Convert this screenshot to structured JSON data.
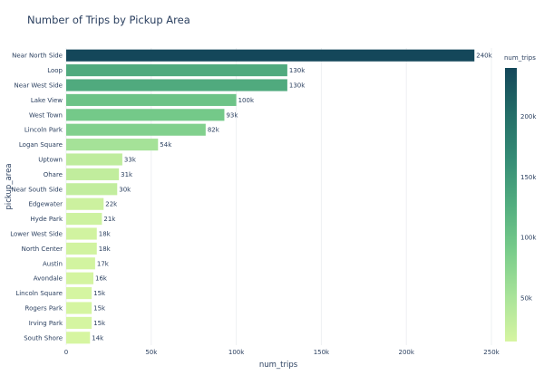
{
  "chart_data": {
    "type": "bar",
    "orientation": "horizontal",
    "title": "Number of Trips by Pickup Area",
    "xlabel": "num_trips",
    "ylabel": "pickup_area",
    "xlim": [
      0,
      250000
    ],
    "x_ticks": [
      0,
      50000,
      100000,
      150000,
      200000,
      250000
    ],
    "x_tick_labels": [
      "0",
      "50k",
      "100k",
      "150k",
      "200k",
      "250k"
    ],
    "grid": true,
    "categories": [
      "Near North Side",
      "Loop",
      "Near West Side",
      "Lake View",
      "West Town",
      "Lincoln Park",
      "Logan Square",
      "Uptown",
      "Ohare",
      "Near South Side",
      "Edgewater",
      "Hyde Park",
      "Lower West Side",
      "North Center",
      "Austin",
      "Avondale",
      "Lincoln Square",
      "Rogers Park",
      "Irving Park",
      "South Shore"
    ],
    "values": [
      240000,
      130000,
      130000,
      100000,
      93000,
      82000,
      54000,
      33000,
      31000,
      30000,
      22000,
      21000,
      18000,
      18000,
      17000,
      16000,
      15000,
      15000,
      15000,
      14000
    ],
    "data_labels": [
      "240k",
      "130k",
      "130k",
      "100k",
      "93k",
      "82k",
      "54k",
      "33k",
      "31k",
      "30k",
      "22k",
      "21k",
      "18k",
      "18k",
      "17k",
      "16k",
      "15k",
      "15k",
      "15k",
      "14k"
    ],
    "colorbar": {
      "title": "num_trips",
      "range": [
        14000,
        240000
      ],
      "ticks": [
        50000,
        100000,
        150000,
        200000
      ],
      "tick_labels": [
        "50k",
        "100k",
        "150k",
        "200k"
      ],
      "colorscale": [
        "#d6f5a1",
        "#a8e399",
        "#78cc8a",
        "#52ad7f",
        "#358c75",
        "#236d67",
        "#14475a"
      ]
    }
  }
}
